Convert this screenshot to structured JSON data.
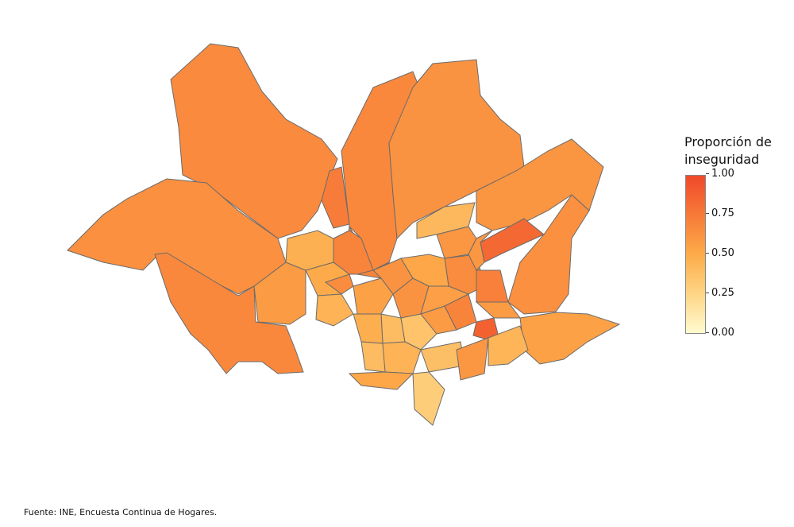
{
  "legend": {
    "title_line1": "Proporción de",
    "title_line2": "inseguridad",
    "ticks": [
      "1.00",
      "0.75",
      "0.50",
      "0.25",
      "0.00"
    ],
    "range": [
      0,
      1
    ],
    "colors": [
      "#fffbd0",
      "#fed585",
      "#fdab4a",
      "#f77a38",
      "#f0492a"
    ]
  },
  "caption": "Fuente: INE, Encuesta Continua de Hogares.",
  "border_color": "#6b6b6b",
  "region_values": [
    0.67,
    0.64,
    0.68,
    0.58,
    0.68,
    0.62,
    0.74,
    0.61,
    0.64,
    0.84,
    0.88,
    0.55,
    0.42,
    0.6,
    0.7,
    0.5,
    0.45,
    0.55,
    0.62,
    0.4,
    0.36,
    0.48,
    0.58,
    0.7,
    0.66,
    0.72,
    0.56,
    0.45,
    0.38,
    0.3,
    0.52,
    0.6,
    0.44,
    0.4,
    0.62,
    0.52,
    0.47,
    0.58,
    0.66,
    0.7,
    0.6
  ]
}
